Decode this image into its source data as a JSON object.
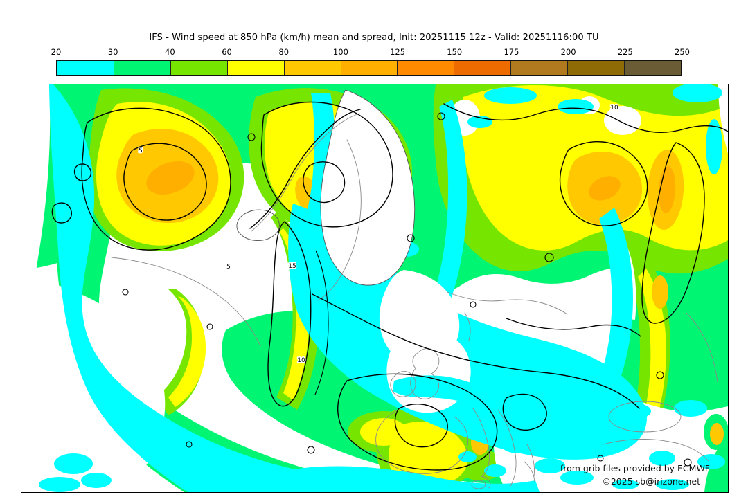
{
  "header": {
    "title": "IFS - Wind speed at 850 hPa (km/h) mean and spread, Init: 20251115 12z - Valid: 20251116:00 TU"
  },
  "colorbar": {
    "tick_labels": [
      "20",
      "30",
      "40",
      "60",
      "80",
      "100",
      "125",
      "150",
      "175",
      "200",
      "225",
      "250"
    ],
    "segments": [
      {
        "range": "20-30",
        "color": "#00FFFF"
      },
      {
        "range": "30-40",
        "color": "#00F573"
      },
      {
        "range": "40-60",
        "color": "#76E600"
      },
      {
        "range": "60-80",
        "color": "#FFFF00"
      },
      {
        "range": "80-100",
        "color": "#FFC800"
      },
      {
        "range": "100-125",
        "color": "#FFAF00"
      },
      {
        "range": "125-150",
        "color": "#FF8A00"
      },
      {
        "range": "150-175",
        "color": "#EE6B00"
      },
      {
        "range": "175-200",
        "color": "#B27A1E"
      },
      {
        "range": "200-225",
        "color": "#8F6B06"
      },
      {
        "range": "225-250",
        "color": "#6A5C35"
      }
    ]
  },
  "map": {
    "contour_labels": {
      "l5": "5",
      "l10": "10",
      "l15": "15"
    },
    "attribution": {
      "line1": "from grib files provided by ECMWF",
      "line2": "©2025 sb@irizone.net"
    },
    "colors": {
      "background": "#FFFFFF",
      "coastline": "#8A8A8A",
      "spread_contour": "#000000",
      "frame": "#000000"
    }
  }
}
